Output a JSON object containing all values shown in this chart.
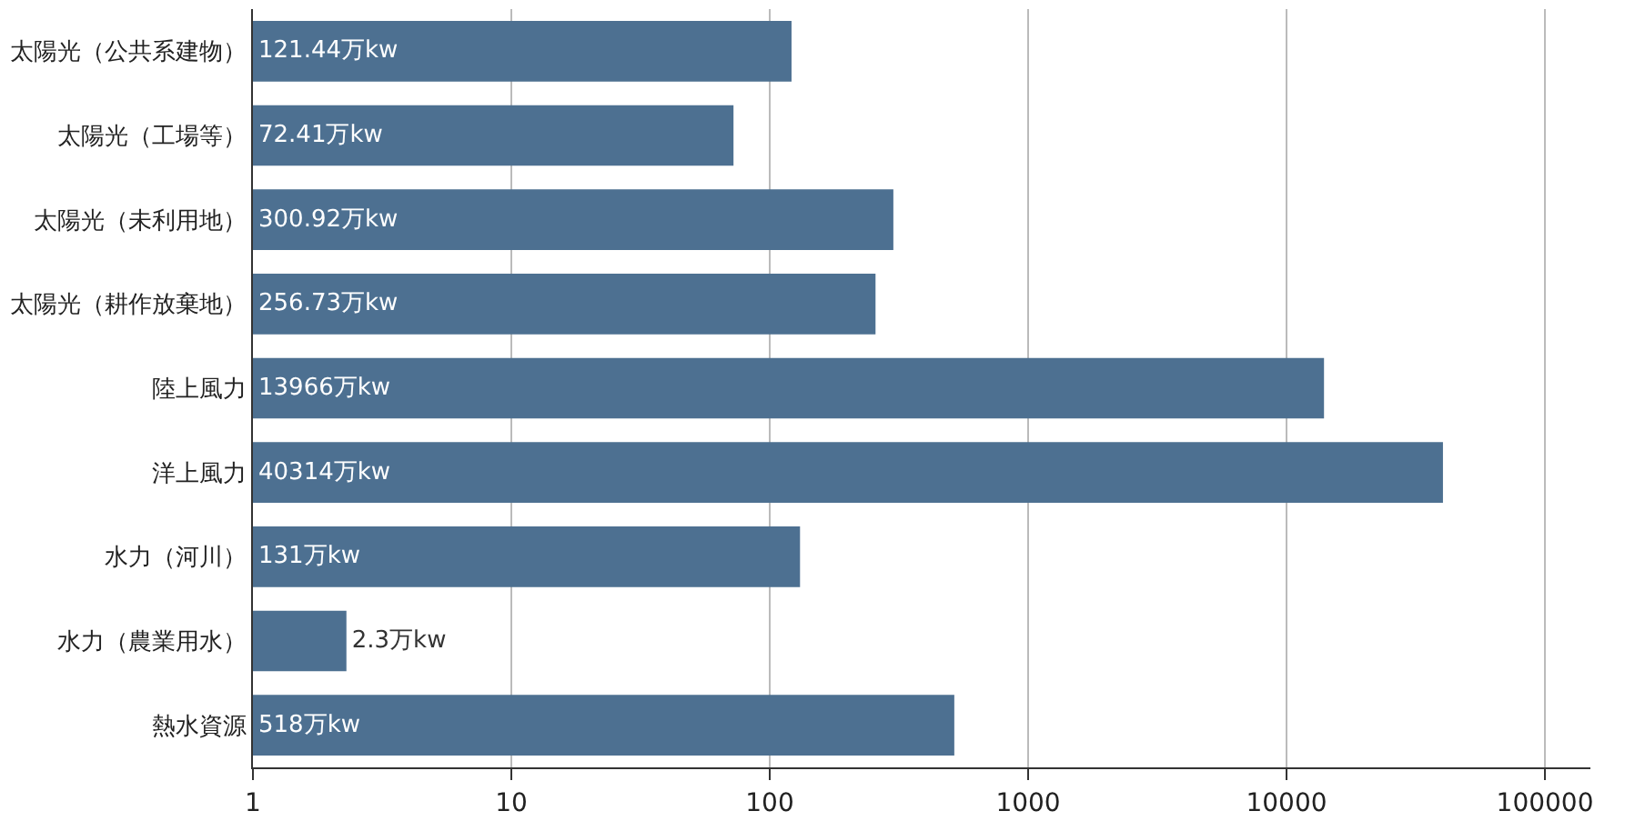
{
  "chart_data": {
    "type": "bar",
    "orientation": "horizontal",
    "categories": [
      "太陽光（公共系建物）",
      "太陽光（工場等）",
      "太陽光（未利用地）",
      "太陽光（耕作放棄地）",
      "陸上風力",
      "洋上風力",
      "水力（河川）",
      "水力（農業用水）",
      "熱水資源"
    ],
    "values": [
      121.44,
      72.41,
      300.92,
      256.73,
      13966,
      40314,
      131,
      2.3,
      518
    ],
    "value_labels": [
      "121.44万kw",
      "72.41万kw",
      "300.92万kw",
      "256.73万kw",
      "13966万kw",
      "40314万kw",
      "131万kw",
      "2.3万kw",
      "518万kw"
    ],
    "color": "#4d7091",
    "log": "x",
    "xlim": [
      1,
      150000
    ],
    "xticks": [
      1,
      10,
      100,
      1000,
      10000,
      100000
    ],
    "grid": "x",
    "legend": false
  }
}
